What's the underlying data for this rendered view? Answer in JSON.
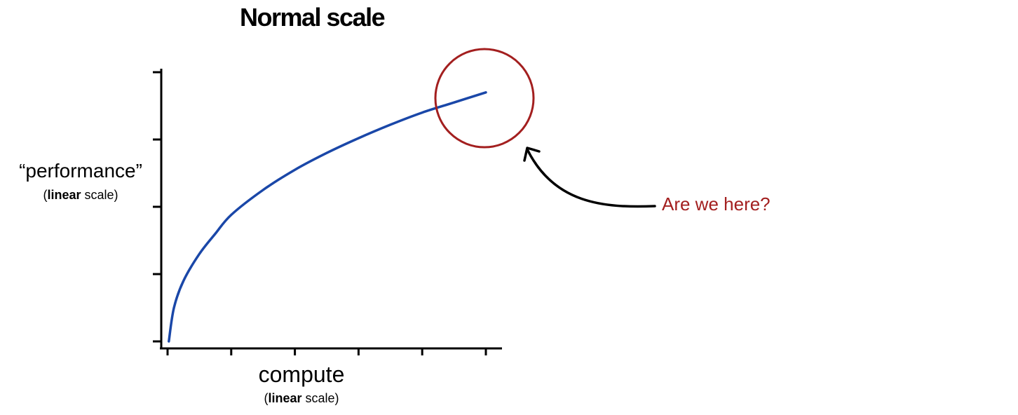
{
  "chart_data": {
    "type": "line",
    "title": "Normal scale",
    "ylabel": "“performance”",
    "ylabel_scale": {
      "open": "(",
      "bold": "linear",
      "rest": " scale)"
    },
    "xlabel": "compute",
    "xlabel_scale": {
      "open": "(",
      "bold": "linear",
      "rest": " scale)"
    },
    "xscale": "linear",
    "yscale": "linear",
    "xlim": [
      0,
      5
    ],
    "ylim": [
      0,
      4
    ],
    "x_ticks": [
      0,
      1,
      2,
      3,
      4,
      5
    ],
    "y_ticks": [
      0,
      1,
      2,
      3,
      4
    ],
    "tick_labels": "none",
    "grid": false,
    "legend": "none",
    "series": [
      {
        "x": [
          0.02,
          0.1,
          0.25,
          0.5,
          0.75,
          1,
          1.5,
          2,
          2.5,
          3,
          3.5,
          4,
          4.5,
          5
        ],
        "y": [
          0.0,
          0.5,
          0.9,
          1.3,
          1.6,
          1.88,
          2.25,
          2.55,
          2.8,
          3.02,
          3.22,
          3.4,
          3.55,
          3.7
        ],
        "color": "#1a47a8"
      }
    ],
    "annotation": {
      "text": "Are we here?",
      "color": "#a31f1f",
      "target": "curve end (highlighted by circle)"
    }
  }
}
